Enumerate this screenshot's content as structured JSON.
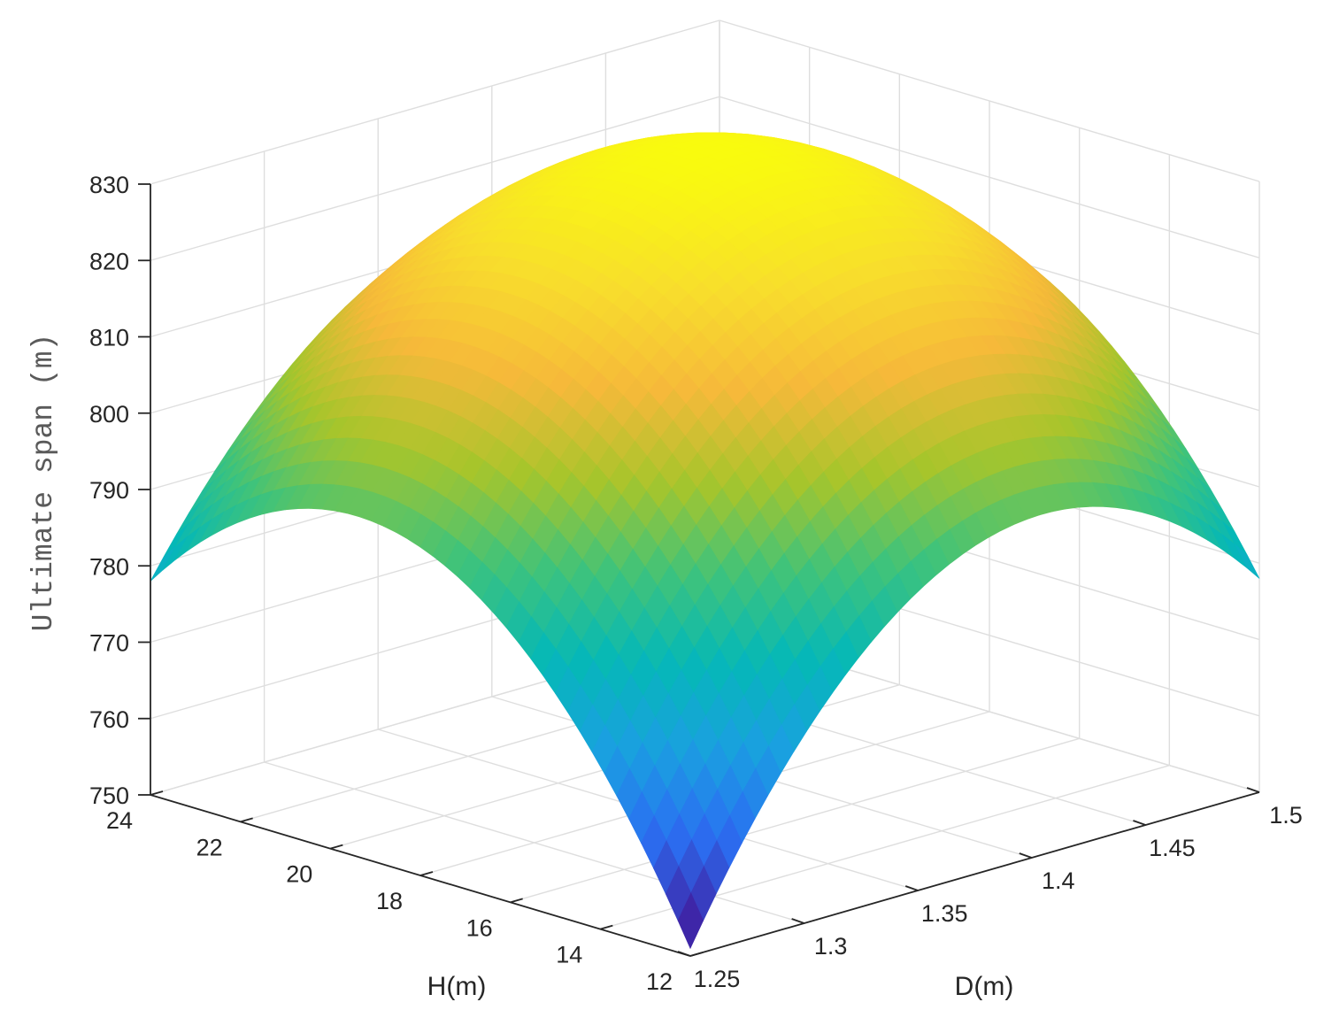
{
  "chart_data": {
    "type": "surface",
    "xlabel": "D(m)",
    "ylabel": "H(m)",
    "zlabel": "Ultimate span (m)",
    "x_ticks": [
      1.25,
      1.3,
      1.35,
      1.4,
      1.45,
      1.5
    ],
    "x_tick_labels": [
      "1.25",
      "1.3",
      "1.35",
      "1.4",
      "1.45",
      "1.5"
    ],
    "y_ticks": [
      12,
      14,
      16,
      18,
      20,
      22,
      24
    ],
    "y_tick_labels": [
      "12",
      "14",
      "16",
      "18",
      "20",
      "22",
      "24"
    ],
    "z_ticks": [
      750,
      760,
      770,
      780,
      790,
      800,
      810,
      820,
      830
    ],
    "z_tick_labels": [
      "750",
      "760",
      "770",
      "780",
      "790",
      "800",
      "810",
      "820",
      "830"
    ],
    "xlim": [
      1.25,
      1.5
    ],
    "ylim": [
      12,
      24
    ],
    "zlim": [
      750,
      830
    ],
    "grid": true,
    "colormap": "parula",
    "colormap_stops": [
      "#3e26a8",
      "#2b6ff2",
      "#1aa0e0",
      "#05b8b7",
      "#40c37a",
      "#a7c52b",
      "#f6b93a",
      "#f8de2c",
      "#f9fb0e"
    ],
    "surface_samples": [
      {
        "D": 1.25,
        "H": 12,
        "span": 751
      },
      {
        "D": 1.25,
        "H": 18,
        "span": 793
      },
      {
        "D": 1.25,
        "H": 24,
        "span": 778
      },
      {
        "D": 1.375,
        "H": 12,
        "span": 793
      },
      {
        "D": 1.375,
        "H": 18,
        "span": 829
      },
      {
        "D": 1.375,
        "H": 24,
        "span": 812
      },
      {
        "D": 1.5,
        "H": 12,
        "span": 778
      },
      {
        "D": 1.5,
        "H": 18,
        "span": 812
      },
      {
        "D": 1.5,
        "H": 24,
        "span": 797
      }
    ]
  }
}
